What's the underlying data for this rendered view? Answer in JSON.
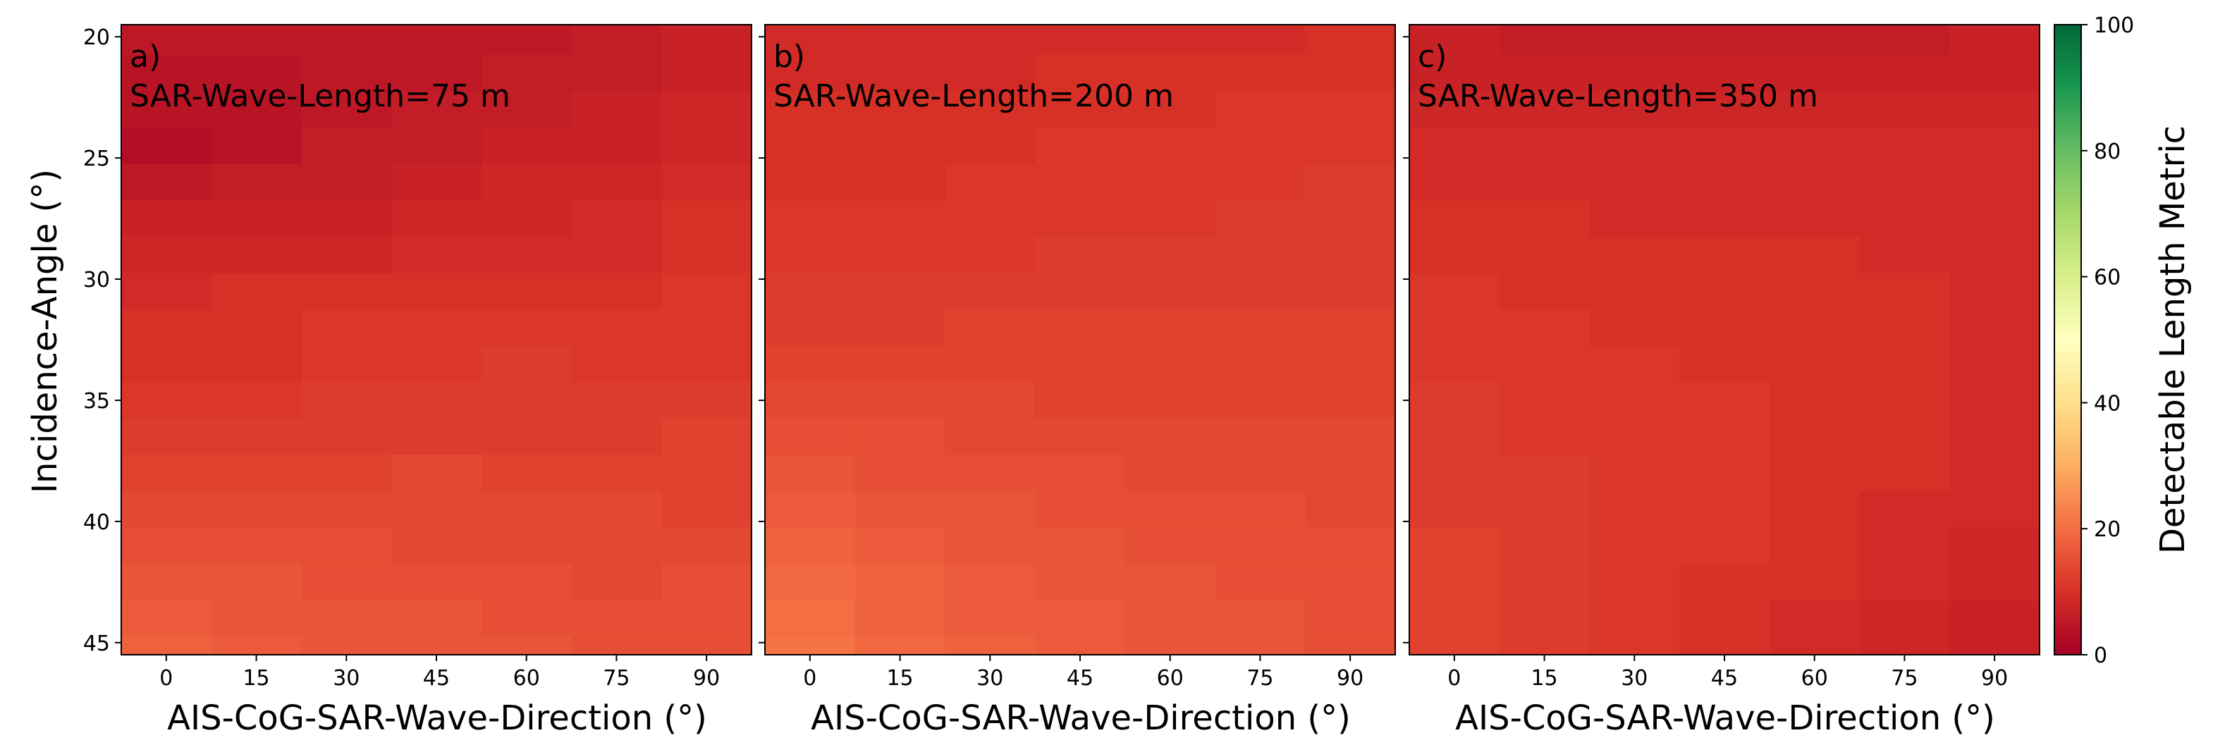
{
  "chart_data": {
    "type": "heatmap",
    "colorbar": {
      "label": "Detectable Length Metric",
      "range": [
        0,
        100
      ],
      "ticks": [
        0,
        20,
        40,
        60,
        80,
        100
      ],
      "colormap": "RdYlGn",
      "stops": [
        "#a50026",
        "#d73027",
        "#f46d43",
        "#fdae61",
        "#fee08b",
        "#ffffbf",
        "#d9ef8b",
        "#a6d96a",
        "#66bd63",
        "#1a9850",
        "#006837"
      ]
    },
    "ylabel": "Incidence-Angle (°)",
    "ylim": [
      19.5,
      45.5
    ],
    "yticks": [
      20,
      25,
      30,
      35,
      40,
      45
    ],
    "xlabel": "AIS-CoG-SAR-Wave-Direction (°)",
    "xlim": [
      -7.5,
      97.5
    ],
    "xticks": [
      0,
      15,
      30,
      45,
      60,
      75,
      90
    ],
    "x": [
      0,
      15,
      30,
      45,
      60,
      75,
      90
    ],
    "y": [
      20,
      21.5,
      23,
      24.5,
      26,
      27.5,
      29,
      30.5,
      32,
      33.5,
      35,
      36.5,
      38,
      39.5,
      41,
      42.5,
      44,
      45.5
    ],
    "panels": [
      {
        "label": "a)",
        "title": "SAR-Wave-Length=75 m",
        "values": [
          [
            5,
            5,
            5,
            5,
            5,
            6,
            7
          ],
          [
            4,
            4,
            5,
            5,
            6,
            6,
            7
          ],
          [
            4,
            4,
            5,
            6,
            6,
            7,
            8
          ],
          [
            3,
            4,
            6,
            6,
            7,
            7,
            8
          ],
          [
            5,
            6,
            6,
            7,
            8,
            8,
            9
          ],
          [
            7,
            7,
            7,
            8,
            8,
            9,
            10
          ],
          [
            8,
            8,
            8,
            9,
            9,
            9,
            10
          ],
          [
            9,
            10,
            10,
            10,
            10,
            10,
            11
          ],
          [
            10,
            10,
            11,
            11,
            11,
            11,
            11
          ],
          [
            10,
            10,
            11,
            11,
            12,
            11,
            11
          ],
          [
            11,
            11,
            12,
            12,
            12,
            12,
            12
          ],
          [
            12,
            12,
            12,
            12,
            12,
            12,
            13
          ],
          [
            13,
            13,
            13,
            14,
            13,
            13,
            13
          ],
          [
            14,
            14,
            14,
            14,
            14,
            14,
            13
          ],
          [
            15,
            15,
            15,
            14,
            14,
            14,
            14
          ],
          [
            16,
            16,
            15,
            15,
            15,
            14,
            15
          ],
          [
            17,
            16,
            16,
            16,
            15,
            15,
            15
          ],
          [
            18,
            17,
            16,
            16,
            16,
            15,
            15
          ]
        ]
      },
      {
        "label": "b)",
        "title": "SAR-Wave-Length=200 m",
        "values": [
          [
            9,
            9,
            9,
            9,
            9,
            9,
            10
          ],
          [
            9,
            9,
            9,
            10,
            10,
            10,
            10
          ],
          [
            10,
            10,
            10,
            10,
            10,
            11,
            11
          ],
          [
            10,
            10,
            10,
            11,
            11,
            11,
            11
          ],
          [
            10,
            10,
            11,
            11,
            11,
            11,
            12
          ],
          [
            11,
            11,
            11,
            11,
            11,
            12,
            12
          ],
          [
            11,
            11,
            11,
            12,
            12,
            12,
            12
          ],
          [
            12,
            12,
            12,
            12,
            12,
            12,
            12
          ],
          [
            12,
            12,
            13,
            13,
            13,
            13,
            13
          ],
          [
            13,
            13,
            13,
            13,
            13,
            13,
            13
          ],
          [
            14,
            14,
            14,
            13,
            13,
            13,
            13
          ],
          [
            15,
            15,
            14,
            14,
            14,
            14,
            14
          ],
          [
            16,
            15,
            15,
            15,
            14,
            14,
            14
          ],
          [
            17,
            16,
            16,
            15,
            15,
            15,
            14
          ],
          [
            18,
            17,
            16,
            16,
            15,
            15,
            15
          ],
          [
            19,
            18,
            17,
            16,
            16,
            15,
            15
          ],
          [
            20,
            18,
            17,
            17,
            16,
            16,
            15
          ],
          [
            21,
            19,
            18,
            17,
            16,
            16,
            15
          ]
        ]
      },
      {
        "label": "c)",
        "title": "SAR-Wave-Length=350 m",
        "values": [
          [
            7,
            6,
            6,
            6,
            6,
            6,
            7
          ],
          [
            7,
            7,
            7,
            7,
            7,
            7,
            7
          ],
          [
            8,
            8,
            8,
            8,
            8,
            8,
            8
          ],
          [
            9,
            9,
            9,
            9,
            9,
            9,
            9
          ],
          [
            9,
            9,
            9,
            9,
            9,
            9,
            9
          ],
          [
            10,
            10,
            9,
            9,
            9,
            9,
            9
          ],
          [
            10,
            10,
            10,
            10,
            10,
            9,
            9
          ],
          [
            11,
            10,
            10,
            10,
            10,
            10,
            9
          ],
          [
            11,
            11,
            10,
            10,
            10,
            10,
            9
          ],
          [
            11,
            11,
            11,
            10,
            10,
            10,
            9
          ],
          [
            12,
            11,
            11,
            11,
            10,
            10,
            9
          ],
          [
            12,
            11,
            11,
            11,
            10,
            10,
            9
          ],
          [
            12,
            12,
            11,
            11,
            10,
            10,
            9
          ],
          [
            12,
            12,
            11,
            11,
            10,
            9,
            9
          ],
          [
            13,
            12,
            11,
            11,
            10,
            9,
            8
          ],
          [
            13,
            12,
            11,
            10,
            10,
            9,
            8
          ],
          [
            13,
            12,
            11,
            10,
            9,
            8,
            7
          ],
          [
            13,
            12,
            11,
            10,
            9,
            8,
            7
          ]
        ]
      }
    ]
  }
}
